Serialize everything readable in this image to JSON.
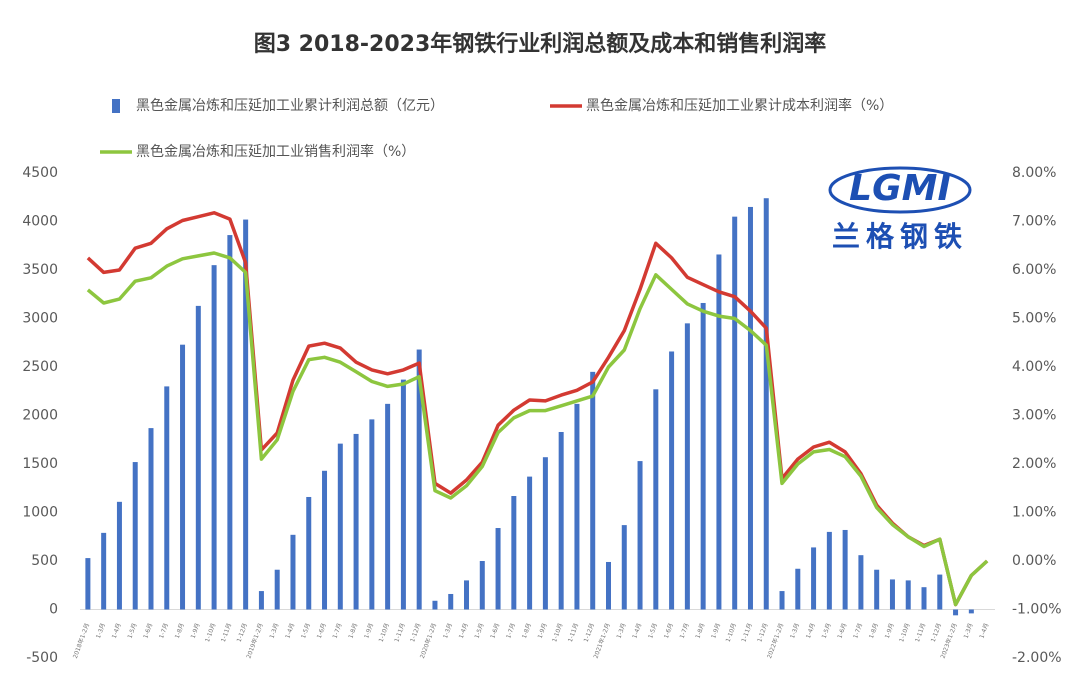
{
  "chart_data": {
    "type": "bar_line",
    "title": "图3 2018-2023年钢铁行业利润总额及成本和销售利润率",
    "watermark": {
      "logo": "LGMI",
      "name": "兰格钢铁"
    },
    "categories": [
      "2018年1-2月",
      "1-3月",
      "1-4月",
      "1-5月",
      "1-6月",
      "1-7月",
      "1-8月",
      "1-9月",
      "1-10月",
      "1-11月",
      "1-12月",
      "2019年1-2月",
      "1-3月",
      "1-4月",
      "1-5月",
      "1-6月",
      "1-7月",
      "1-8月",
      "1-9月",
      "1-10月",
      "1-11月",
      "1-12月",
      "2020年1-2月",
      "1-3月",
      "1-4月",
      "1-5月",
      "1-6月",
      "1-7月",
      "1-8月",
      "1-9月",
      "1-10月",
      "1-11月",
      "1-12月",
      "2021年1-2月",
      "1-3月",
      "1-4月",
      "1-5月",
      "1-6月",
      "1-7月",
      "1-8月",
      "1-9月",
      "1-10月",
      "1-11月",
      "1-12月",
      "2022年1-2月",
      "1-3月",
      "1-4月",
      "1-5月",
      "1-6月",
      "1-7月",
      "1-8月",
      "1-9月",
      "1-10月",
      "1-11月",
      "1-12月",
      "2023年1-2月",
      "1-3月",
      "1-4月"
    ],
    "series": [
      {
        "name": "黑色金属冶炼和压延加工业累计利润总额（亿元）",
        "color": "#4472c4",
        "kind": "bar",
        "values": [
          530,
          790,
          1110,
          1520,
          1870,
          2300,
          2730,
          3130,
          3550,
          3860,
          4020,
          190,
          410,
          770,
          1160,
          1430,
          1710,
          1810,
          1960,
          2120,
          2370,
          2680,
          90,
          160,
          300,
          500,
          840,
          1170,
          1370,
          1570,
          1830,
          2120,
          2450,
          490,
          870,
          1530,
          2270,
          2660,
          2950,
          3160,
          3660,
          4050,
          4150,
          4240,
          190,
          420,
          640,
          800,
          820,
          560,
          410,
          310,
          300,
          230,
          360,
          -60,
          -40,
          null
        ]
      },
      {
        "name": "黑色金属冶炼和压延加工业累计成本利润率（%）",
        "color": "#d33a32",
        "kind": "line",
        "axis": "y2",
        "values": [
          6.25,
          5.95,
          6.0,
          6.45,
          6.55,
          6.85,
          7.02,
          7.1,
          7.18,
          7.05,
          6.15,
          2.29,
          2.64,
          3.73,
          4.43,
          4.49,
          4.39,
          4.1,
          3.94,
          3.86,
          3.94,
          4.08,
          1.6,
          1.4,
          1.67,
          2.04,
          2.8,
          3.11,
          3.32,
          3.3,
          3.42,
          3.52,
          3.69,
          4.2,
          4.75,
          5.6,
          6.55,
          6.25,
          5.85,
          5.7,
          5.55,
          5.45,
          5.15,
          4.8,
          1.7,
          2.1,
          2.35,
          2.45,
          2.25,
          1.8,
          1.15,
          0.78,
          0.5,
          0.32,
          0.45,
          -0.9,
          -0.3,
          0.0
        ]
      },
      {
        "name": "黑色金属冶炼和压延加工业销售利润率（%）",
        "color": "#8dc63f",
        "kind": "line",
        "axis": "y2",
        "values": [
          5.59,
          5.32,
          5.4,
          5.77,
          5.84,
          6.08,
          6.23,
          6.29,
          6.35,
          6.25,
          5.95,
          2.1,
          2.5,
          3.5,
          4.15,
          4.2,
          4.1,
          3.9,
          3.7,
          3.6,
          3.65,
          3.8,
          1.45,
          1.3,
          1.55,
          1.95,
          2.65,
          2.95,
          3.1,
          3.1,
          3.2,
          3.3,
          3.4,
          4.0,
          4.35,
          5.2,
          5.9,
          5.6,
          5.3,
          5.15,
          5.05,
          5.0,
          4.75,
          4.45,
          1.6,
          2.0,
          2.25,
          2.3,
          2.15,
          1.75,
          1.1,
          0.75,
          0.5,
          0.3,
          0.45,
          -0.9,
          -0.3,
          0.0
        ]
      }
    ],
    "ylim": [
      -500,
      4500
    ],
    "yticks": [
      -500,
      0,
      500,
      1000,
      1500,
      2000,
      2500,
      3000,
      3500,
      4000,
      4500
    ],
    "y2lim": [
      -2,
      8
    ],
    "y2ticks": [
      {
        "value": -2,
        "label": "-2.00%"
      },
      {
        "value": -1,
        "label": "-1.00%"
      },
      {
        "value": 0,
        "label": "0.00%"
      },
      {
        "value": 1,
        "label": "1.00%"
      },
      {
        "value": 2,
        "label": "2.00%"
      },
      {
        "value": 3,
        "label": "3.00%"
      },
      {
        "value": 4,
        "label": "4.00%"
      },
      {
        "value": 5,
        "label": "5.00%"
      },
      {
        "value": 6,
        "label": "6.00%"
      },
      {
        "value": 7,
        "label": "7.00%"
      },
      {
        "value": 8,
        "label": "8.00%"
      }
    ]
  }
}
